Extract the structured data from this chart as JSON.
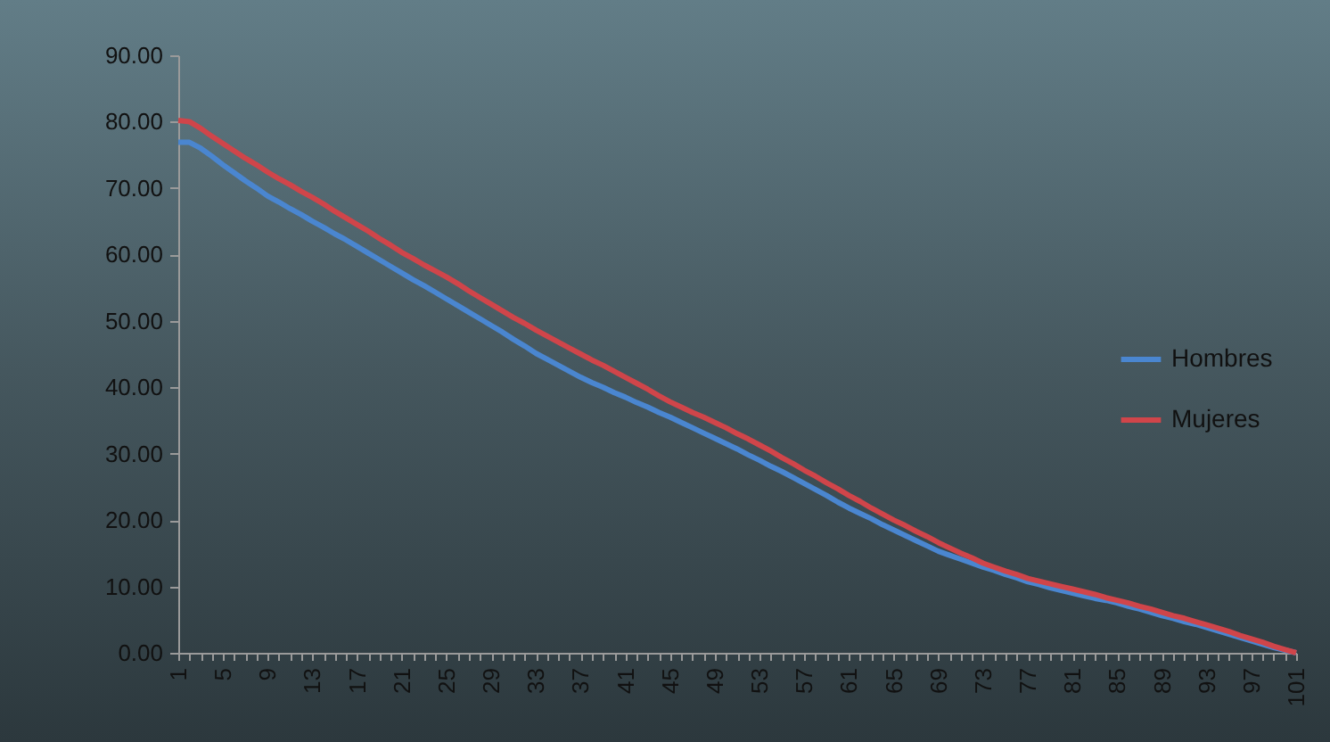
{
  "chart_data": {
    "type": "line",
    "categories": [
      "1",
      null,
      null,
      null,
      "5",
      null,
      null,
      null,
      "9",
      null,
      null,
      null,
      "13",
      null,
      null,
      null,
      "17",
      null,
      null,
      null,
      "21",
      null,
      null,
      null,
      "25",
      null,
      null,
      null,
      "29",
      null,
      null,
      null,
      "33",
      null,
      null,
      null,
      "37",
      null,
      null,
      null,
      "41",
      null,
      null,
      null,
      "45",
      null,
      null,
      null,
      "49",
      null,
      null,
      null,
      "53",
      null,
      null,
      null,
      "57",
      null,
      null,
      null,
      "61",
      null,
      null,
      null,
      "65",
      null,
      null,
      null,
      "69",
      null,
      null,
      null,
      "73",
      null,
      null,
      null,
      "77",
      null,
      null,
      null,
      "81",
      null,
      null,
      null,
      "85",
      null,
      null,
      null,
      "89",
      null,
      null,
      null,
      "93",
      null,
      null,
      null,
      "97",
      null,
      null,
      null,
      "101"
    ],
    "series": [
      {
        "name": "Hombres",
        "color": "#4a86d0",
        "values": [
          76.9,
          76.9,
          76.0,
          74.8,
          73.5,
          72.3,
          71.1,
          70.0,
          68.8,
          67.9,
          66.9,
          66.0,
          65.0,
          64.1,
          63.1,
          62.2,
          61.2,
          60.2,
          59.2,
          58.2,
          57.2,
          56.2,
          55.3,
          54.3,
          53.3,
          52.3,
          51.3,
          50.3,
          49.3,
          48.3,
          47.2,
          46.2,
          45.1,
          44.2,
          43.3,
          42.4,
          41.5,
          40.7,
          40.0,
          39.2,
          38.5,
          37.7,
          37.0,
          36.2,
          35.5,
          34.7,
          33.9,
          33.1,
          32.3,
          31.5,
          30.7,
          29.8,
          29.0,
          28.1,
          27.3,
          26.4,
          25.5,
          24.6,
          23.7,
          22.7,
          21.8,
          21.0,
          20.2,
          19.3,
          18.5,
          17.7,
          16.9,
          16.1,
          15.3,
          14.7,
          14.1,
          13.5,
          12.9,
          12.4,
          11.8,
          11.3,
          10.7,
          10.3,
          9.8,
          9.4,
          9.0,
          8.6,
          8.2,
          7.9,
          7.5,
          7.0,
          6.6,
          6.1,
          5.6,
          5.2,
          4.7,
          4.3,
          3.8,
          3.3,
          2.8,
          2.3,
          1.8,
          1.3,
          0.8,
          0.4,
          0.0
        ]
      },
      {
        "name": "Mujeres",
        "color": "#d0454a",
        "values": [
          80.2,
          80.0,
          79.0,
          77.8,
          76.7,
          75.6,
          74.5,
          73.5,
          72.4,
          71.4,
          70.5,
          69.5,
          68.6,
          67.6,
          66.5,
          65.5,
          64.5,
          63.5,
          62.4,
          61.4,
          60.3,
          59.4,
          58.4,
          57.5,
          56.6,
          55.6,
          54.5,
          53.5,
          52.5,
          51.5,
          50.5,
          49.6,
          48.6,
          47.7,
          46.8,
          45.9,
          45.0,
          44.1,
          43.3,
          42.4,
          41.5,
          40.6,
          39.7,
          38.7,
          37.8,
          37.0,
          36.2,
          35.5,
          34.7,
          33.9,
          33.0,
          32.2,
          31.3,
          30.4,
          29.4,
          28.5,
          27.5,
          26.6,
          25.6,
          24.7,
          23.7,
          22.8,
          21.8,
          20.9,
          20.0,
          19.2,
          18.3,
          17.5,
          16.6,
          15.8,
          15.0,
          14.3,
          13.5,
          12.9,
          12.3,
          11.8,
          11.2,
          10.8,
          10.4,
          10.0,
          9.6,
          9.2,
          8.8,
          8.3,
          7.9,
          7.5,
          7.0,
          6.6,
          6.1,
          5.6,
          5.2,
          4.7,
          4.2,
          3.7,
          3.2,
          2.6,
          2.1,
          1.6,
          1.0,
          0.5,
          0.0
        ]
      }
    ],
    "ylim": [
      0,
      90
    ],
    "yticks": [
      {
        "value": 0,
        "label": "0.00"
      },
      {
        "value": 10,
        "label": "10.00"
      },
      {
        "value": 20,
        "label": "20.00"
      },
      {
        "value": 30,
        "label": "30.00"
      },
      {
        "value": 40,
        "label": "40.00"
      },
      {
        "value": 50,
        "label": "50.00"
      },
      {
        "value": 60,
        "label": "60.00"
      },
      {
        "value": 70,
        "label": "70.00"
      },
      {
        "value": 80,
        "label": "80.00"
      },
      {
        "value": 90,
        "label": "90.00"
      }
    ],
    "legend": "right"
  }
}
